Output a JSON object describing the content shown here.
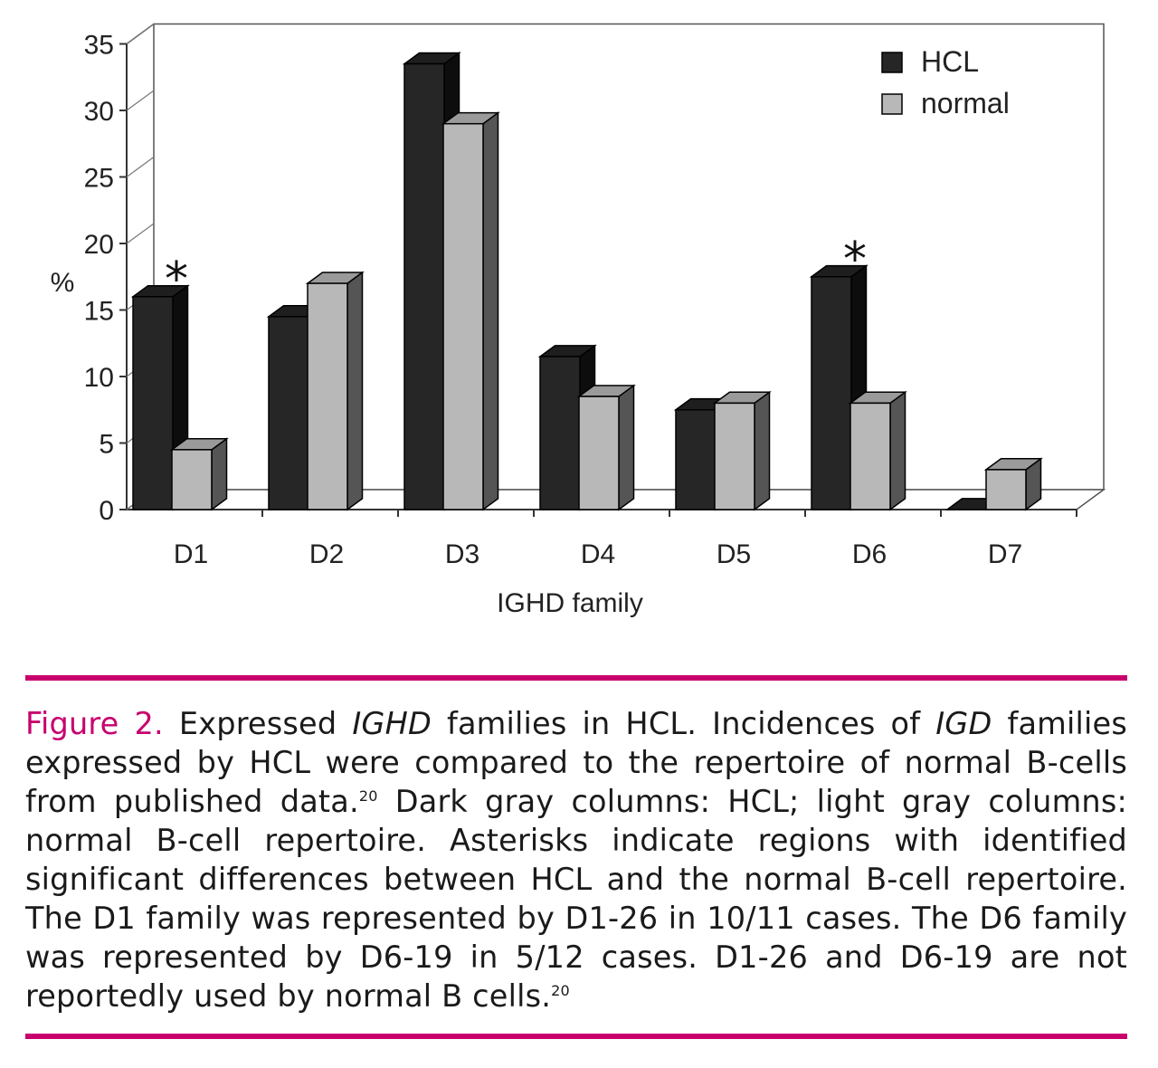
{
  "chart_data": {
    "type": "bar",
    "style": "3d-clustered-column",
    "categories": [
      "D1",
      "D2",
      "D3",
      "D4",
      "D5",
      "D6",
      "D7"
    ],
    "series": [
      {
        "name": "HCL",
        "color": "#262626",
        "values": [
          16,
          14.5,
          33.5,
          11.5,
          7.5,
          17.5,
          0
        ]
      },
      {
        "name": "normal",
        "color": "#b8b8b8",
        "values": [
          4.5,
          17,
          29,
          8.5,
          8,
          8,
          3
        ]
      }
    ],
    "ylim": [
      0,
      35
    ],
    "yticks": [
      0,
      5,
      10,
      15,
      20,
      25,
      30,
      35
    ],
    "ylabel": "%",
    "xlabel": "IGHD family",
    "legend_position": "top-right",
    "annotations": [
      {
        "text": "*",
        "category": "D1"
      },
      {
        "text": "*",
        "category": "D6"
      }
    ]
  },
  "caption": {
    "figure_label": "Figure 2.",
    "text_1": " Expressed ",
    "italic_1": "IGHD",
    "text_2": " families in HCL. Incidences of ",
    "italic_2": "IGD",
    "text_3": " families expressed by HCL were compared to the repertoire of normal B-cells from published data.",
    "ref_1": "20",
    "text_4": " Dark gray columns: HCL; light gray columns: normal B-cell repertoire. Asterisks indicate regions with identified significant differences between HCL and the normal B-cell repertoire. The D1 family was represented by D1-26 in 10/11 cases. The D6 family was represented by D6-19 in 5/12 cases. D1-26 and D6-19 are not reportedly used by normal B cells.",
    "ref_2": "20"
  },
  "colors": {
    "accent_rule": "#c8006e",
    "hcl_bar": "#262626",
    "normal_bar": "#b8b8b8"
  }
}
